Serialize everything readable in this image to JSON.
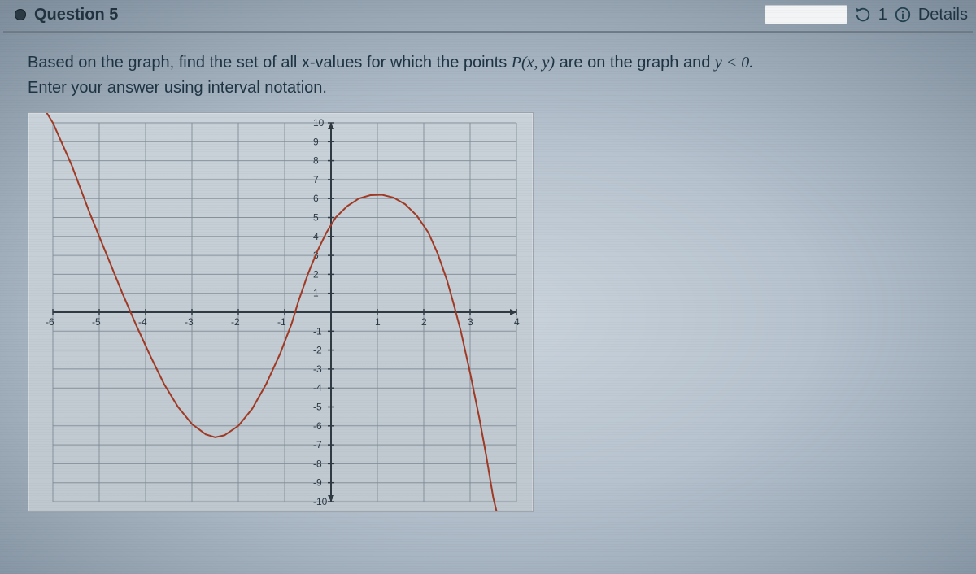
{
  "header": {
    "title": "Question 5",
    "attempts": "1",
    "details_label": "Details"
  },
  "prompt": {
    "line1_pre": "Based on the graph, find the set of all x-values for which  the points ",
    "line1_math": "P(x, y)",
    "line1_mid": " are on the graph and ",
    "line1_cond": "y < 0.",
    "line2": "Enter your answer using interval notation."
  },
  "graph": {
    "xlim": [
      -6,
      4
    ],
    "ylim": [
      -10,
      10
    ],
    "xtick_step": 1,
    "ytick_step": 1,
    "xticks": [
      -6,
      -5,
      -4,
      -3,
      -2,
      -1,
      1,
      2,
      3,
      4
    ],
    "yticks": [
      -10,
      -9,
      -8,
      -7,
      -6,
      -5,
      -4,
      -3,
      -2,
      -1,
      1,
      2,
      3,
      4,
      5,
      6,
      7,
      8,
      9,
      10
    ],
    "background": "#c6ced6",
    "grid_color": "#7e8a94",
    "axis_color": "#303a42",
    "curve_color": "#a03a25",
    "curve_points": [
      [
        -6.2,
        10.8
      ],
      [
        -6,
        10
      ],
      [
        -5.6,
        7.8
      ],
      [
        -5.2,
        5.2
      ],
      [
        -4.8,
        2.8
      ],
      [
        -4.5,
        1.0
      ],
      [
        -4.2,
        -0.7
      ],
      [
        -3.9,
        -2.3
      ],
      [
        -3.6,
        -3.8
      ],
      [
        -3.3,
        -5.0
      ],
      [
        -3.0,
        -5.9
      ],
      [
        -2.7,
        -6.45
      ],
      [
        -2.5,
        -6.6
      ],
      [
        -2.3,
        -6.5
      ],
      [
        -2.0,
        -6.0
      ],
      [
        -1.7,
        -5.1
      ],
      [
        -1.4,
        -3.8
      ],
      [
        -1.1,
        -2.2
      ],
      [
        -0.85,
        -0.6
      ],
      [
        -0.7,
        0.6
      ],
      [
        -0.5,
        2.0
      ],
      [
        -0.3,
        3.2
      ],
      [
        -0.1,
        4.2
      ],
      [
        0.1,
        5.0
      ],
      [
        0.35,
        5.6
      ],
      [
        0.6,
        6.0
      ],
      [
        0.85,
        6.18
      ],
      [
        1.1,
        6.2
      ],
      [
        1.35,
        6.05
      ],
      [
        1.6,
        5.7
      ],
      [
        1.85,
        5.1
      ],
      [
        2.1,
        4.2
      ],
      [
        2.3,
        3.1
      ],
      [
        2.5,
        1.7
      ],
      [
        2.65,
        0.4
      ],
      [
        2.8,
        -1.0
      ],
      [
        3.0,
        -3.2
      ],
      [
        3.2,
        -5.6
      ],
      [
        3.35,
        -7.6
      ],
      [
        3.5,
        -9.8
      ],
      [
        3.6,
        -10.8
      ]
    ]
  }
}
